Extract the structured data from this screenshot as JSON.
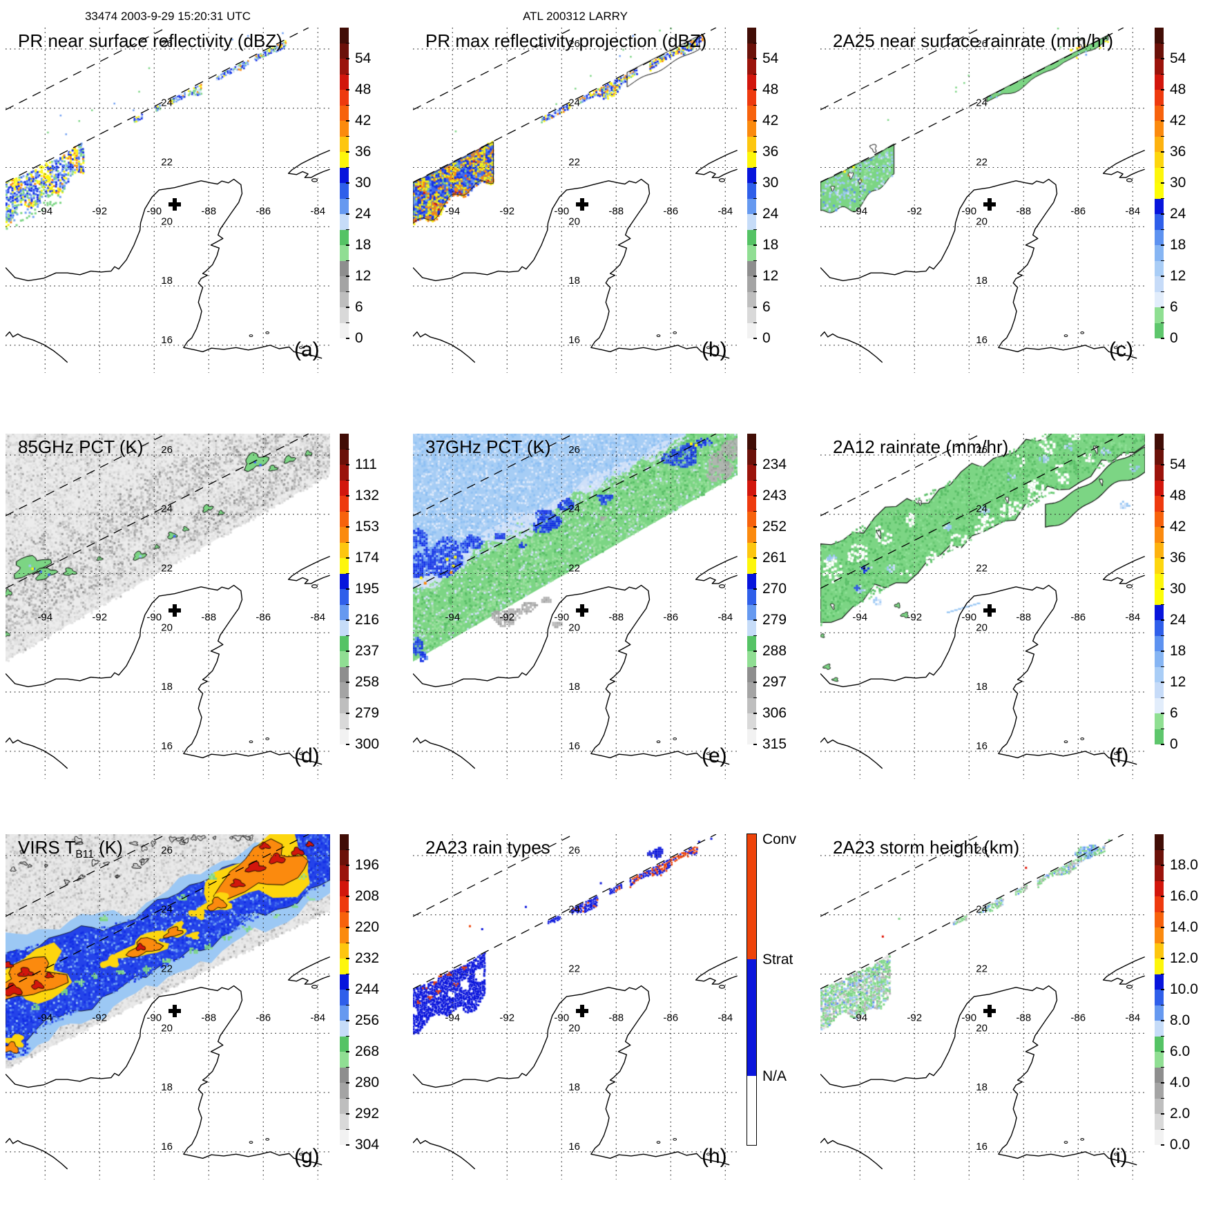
{
  "page": {
    "background": "#ffffff",
    "header_left": "33474 2003-9-29 15:20:31 UTC",
    "header_center": "ATL 200312 LARRY"
  },
  "map": {
    "lat_labels": [
      "26",
      "24",
      "22",
      "20",
      "18",
      "16"
    ],
    "lon_labels": [
      "-94",
      "-92",
      "-90",
      "-88",
      "-86",
      "-84"
    ],
    "storm_center": {
      "lon": -89.25,
      "lat": 20.75
    }
  },
  "colors": {
    "scale_main": [
      "#410d06",
      "#6b1109",
      "#9a130b",
      "#d2160c",
      "#ee3a0e",
      "#f7620c",
      "#fb8a0e",
      "#fdc60f",
      "#fdf60b",
      "#0715dc",
      "#2f5fea",
      "#6699f0",
      "#c6dcf8",
      "#55c365",
      "#90de93",
      "#8e8e8e",
      "#a4a4a4",
      "#bebebe",
      "#d9d9d9",
      "#f2f2f2"
    ],
    "scale_rain": [
      "#410d06",
      "#6b1109",
      "#9a130b",
      "#d2160c",
      "#ee3a0e",
      "#f7620c",
      "#fb8a0e",
      "#fdb20f",
      "#fdd60e",
      "#fdf60b",
      "#fdfd07",
      "#0715dc",
      "#2f5fea",
      "#5d92f0",
      "#86b5f3",
      "#a9cdf6",
      "#c6dbf8",
      "#e2edfb",
      "#8fdf92",
      "#5ec66c"
    ],
    "raintype": {
      "conv": "#ee4309",
      "strat": "#0b16dc",
      "na": "#ffffff"
    }
  },
  "panels": [
    {
      "letter": "(a)",
      "title": "PR near surface reflectivity (dBZ)",
      "cb": "main",
      "ticks": [
        "54",
        "48",
        "42",
        "36",
        "30",
        "24",
        "18",
        "12",
        "6",
        "0"
      ]
    },
    {
      "letter": "(b)",
      "title": "PR max reflectivity projection (dBZ)",
      "cb": "main",
      "ticks": [
        "54",
        "48",
        "42",
        "36",
        "30",
        "24",
        "18",
        "12",
        "6",
        "0"
      ]
    },
    {
      "letter": "(c)",
      "title": "2A25 near surface rainrate (mm/hr)",
      "cb": "rain",
      "ticks": [
        "54",
        "48",
        "42",
        "36",
        "30",
        "24",
        "18",
        "12",
        "6",
        "0"
      ]
    },
    {
      "letter": "(d)",
      "title": "85GHz PCT (K)",
      "cb": "main",
      "ticks": [
        "111",
        "132",
        "153",
        "174",
        "195",
        "216",
        "237",
        "258",
        "279",
        "300"
      ]
    },
    {
      "letter": "(e)",
      "title": "37GHz PCT (K)",
      "cb": "main",
      "ticks": [
        "234",
        "243",
        "252",
        "261",
        "270",
        "279",
        "288",
        "297",
        "306",
        "315"
      ]
    },
    {
      "letter": "(f)",
      "title": "2A12 rainrate (mm/hr)",
      "cb": "rain",
      "ticks": [
        "54",
        "48",
        "42",
        "36",
        "30",
        "24",
        "18",
        "12",
        "6",
        "0"
      ]
    },
    {
      "letter": "(g)",
      "title_prefix": "VIRS T",
      "title_sub": "B11",
      "title_suffix": " (K)",
      "cb": "main",
      "ticks": [
        "196",
        "208",
        "220",
        "232",
        "244",
        "256",
        "268",
        "280",
        "292",
        "304"
      ]
    },
    {
      "letter": "(h)",
      "title": "2A23 rain types",
      "cb": "raintype",
      "type_labels": [
        "Conv",
        "Strat",
        "N/A"
      ]
    },
    {
      "letter": "(i)",
      "title": "2A23 storm height (km)",
      "cb": "main",
      "ticks": [
        "18.0",
        "16.0",
        "14.0",
        "12.0",
        "10.0",
        "8.0",
        "6.0",
        "4.0",
        "2.0",
        "0.0"
      ]
    }
  ],
  "chart_data": [
    {
      "panel": "(a)",
      "type": "heatmap",
      "title": "PR near surface reflectivity (dBZ)",
      "units": "dBZ",
      "colorbar_ticks": [
        54,
        48,
        42,
        36,
        30,
        24,
        18,
        12,
        6,
        0
      ],
      "extent": {
        "lon": [
          -95.4,
          -83.6
        ],
        "lat": [
          15.1,
          26.7
        ]
      },
      "features": "Narrow echo band 18-45 dBZ hugging the PR swath edge from (-90.6,23.8) to (-84.9,26.6); banded cluster near (-94.3,22.2) with 33-42 dBZ yellow/orange cores in blue stratiform echo"
    },
    {
      "panel": "(b)",
      "type": "heatmap",
      "title": "PR max reflectivity projection (dBZ)",
      "units": "dBZ",
      "colorbar_ticks": [
        54,
        48,
        42,
        36,
        30,
        24,
        18,
        12,
        6,
        0
      ],
      "extent": {
        "lon": [
          -95.4,
          -83.6
        ],
        "lat": [
          15.1,
          26.7
        ]
      },
      "features": "Same echo regions as (a) but filled and stronger, widespread 36-45 dBZ cores with black contour outlines"
    },
    {
      "panel": "(c)",
      "type": "heatmap",
      "title": "2A25 near surface rainrate (mm/hr)",
      "units": "mm/hr",
      "colorbar_ticks": [
        54,
        48,
        42,
        36,
        30,
        24,
        18,
        12,
        6,
        0
      ],
      "extent": {
        "lon": [
          -95.4,
          -83.6
        ],
        "lat": [
          15.1,
          26.7
        ]
      },
      "features": "Light rain 1-12 mm/hr (green with light-blue patches) in the same two PR echo areas; few higher-rate pixels near (-86,26.1)"
    },
    {
      "panel": "(d)",
      "type": "heatmap",
      "title": "85GHz PCT (K)",
      "units": "K",
      "colorbar_ticks": [
        111,
        132,
        153,
        174,
        195,
        216,
        237,
        258,
        279,
        300
      ],
      "extent": {
        "lon": [
          -95.4,
          -83.6
        ],
        "lat": [
          15.1,
          26.7
        ]
      },
      "features": "Wide TMI swath mostly 258-300 K (light gray); scattered ice-scattering depressions 216-250 K (green/blue blobs) strung along the storm band"
    },
    {
      "panel": "(e)",
      "type": "heatmap",
      "title": "37GHz PCT (K)",
      "units": "K",
      "colorbar_ticks": [
        234,
        243,
        252,
        261,
        270,
        279,
        288,
        297,
        306,
        315
      ],
      "extent": {
        "lon": [
          -95.4,
          -83.6
        ],
        "lat": [
          15.1,
          26.7
        ]
      },
      "features": "270-282 K (light blue) ocean background, 285-295 K (green) band along swath lower edge, 261-272 K (dark blue) cells along rainband with a few 252-261 K (yellow/orange) pixels, gray 297-306 K patches"
    },
    {
      "panel": "(f)",
      "type": "heatmap",
      "title": "2A12 rainrate (mm/hr)",
      "units": "mm/hr",
      "colorbar_ticks": [
        54,
        48,
        42,
        36,
        30,
        24,
        18,
        12,
        6,
        0
      ],
      "extent": {
        "lon": [
          -95.4,
          -83.6
        ],
        "lat": [
          15.1,
          26.7
        ]
      },
      "features": "Broad 1-8 mm/hr (green) rain shield along the NE-SW band with embedded 8-20 mm/hr (blue) cells and small rain-free holes"
    },
    {
      "panel": "(g)",
      "type": "heatmap",
      "title": "VIRS TB11 (K)",
      "units": "K",
      "colorbar_ticks": [
        196,
        208,
        220,
        232,
        244,
        256,
        268,
        280,
        292,
        304
      ],
      "extent": {
        "lon": [
          -95.4,
          -83.6
        ],
        "lat": [
          15.1,
          26.7
        ]
      },
      "features": "Cold cloud shield: 232-256 K (blue) anvil band with 196-220 K (orange/red) cold overshooting tops outlined in black; warm 268-304 K (gray) cloud field elsewhere in swath"
    },
    {
      "panel": "(h)",
      "type": "categorical-map",
      "title": "2A23 rain types",
      "categories": [
        "Conv",
        "Strat",
        "N/A"
      ],
      "extent": {
        "lon": [
          -95.4,
          -83.6
        ],
        "lat": [
          15.1,
          26.7
        ]
      },
      "features": "Mostly stratiform (blue) echo; convective (red) pixels embedded in the upper-left band and a convective streak along the swath edge near (-86,26)"
    },
    {
      "panel": "(i)",
      "type": "heatmap",
      "title": "2A23 storm height (km)",
      "units": "km",
      "colorbar_ticks": [
        18,
        16,
        14,
        12,
        10,
        8,
        6,
        4,
        2,
        0
      ],
      "extent": {
        "lon": [
          -95.4,
          -83.6
        ],
        "lat": [
          15.1,
          26.7
        ]
      },
      "features": "Storm heights mostly 4-7 km (gray/green) with 7-10 km (light blue/blue) cells; isolated single red pixels near (-93.2,23.3) and (-88,25.6)"
    }
  ]
}
